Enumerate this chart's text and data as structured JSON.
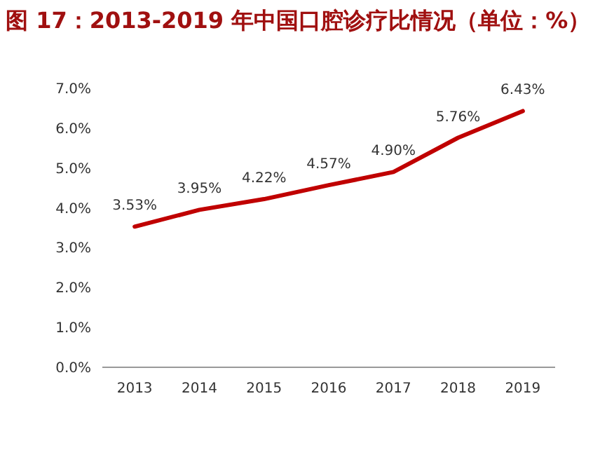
{
  "chart_data": {
    "type": "line",
    "title": "图 17：2013-2019 年中国口腔诊疗比情况（单位：%）",
    "categories": [
      "2013",
      "2014",
      "2015",
      "2016",
      "2017",
      "2018",
      "2019"
    ],
    "series": [
      {
        "color": "#c00000",
        "values": [
          3.53,
          3.95,
          4.22,
          4.57,
          4.9,
          5.76,
          6.43
        ],
        "value_labels": [
          "3.53%",
          "3.95%",
          "4.22%",
          "4.57%",
          "4.90%",
          "5.76%",
          "6.43%"
        ]
      }
    ],
    "ylim": [
      0,
      7
    ],
    "yticks": [
      {
        "value": 0,
        "label": "0.0%"
      },
      {
        "value": 1,
        "label": "1.0%"
      },
      {
        "value": 2,
        "label": "2.0%"
      },
      {
        "value": 3,
        "label": "3.0%"
      },
      {
        "value": 4,
        "label": "4.0%"
      },
      {
        "value": 5,
        "label": "5.0%"
      },
      {
        "value": 6,
        "label": "6.0%"
      },
      {
        "value": 7,
        "label": "7.0%"
      }
    ],
    "marker": "none",
    "line_style": "solid"
  }
}
